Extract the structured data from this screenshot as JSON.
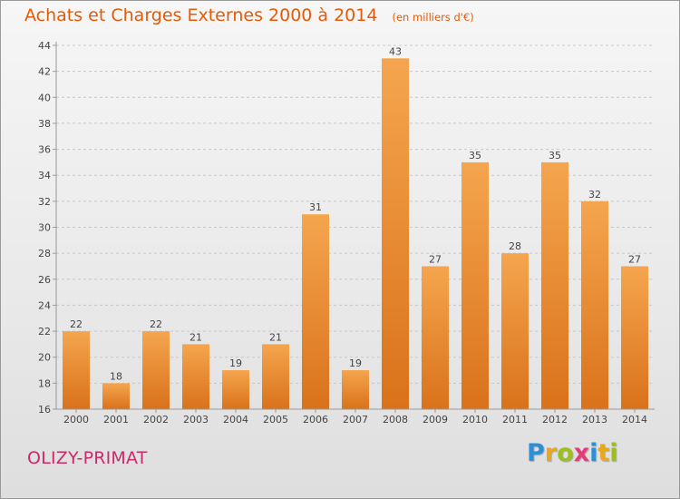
{
  "header": {
    "title": "Achats et Charges Externes 2000 à 2014",
    "unit": "(en milliers d'€)"
  },
  "footer": {
    "town": "OLIZY-PRIMAT",
    "logo": {
      "letters": [
        "P",
        "r",
        "o",
        "x",
        "i",
        "t",
        "i"
      ],
      "colors": [
        "#2d8fd5",
        "#e8a81e",
        "#9bbf1f",
        "#e43c7a",
        "#2d8fd5",
        "#e8a81e",
        "#9bbf1f"
      ]
    }
  },
  "colors": {
    "bar_top": "#f5a54f",
    "bar_bottom": "#d9721a",
    "axis": "#999999",
    "grid": "#c8c8c8",
    "text": "#444444"
  },
  "chart_data": {
    "type": "bar",
    "title": "Achats et Charges Externes 2000 à 2014",
    "subtitle": "(en milliers d'€)",
    "categories": [
      "2000",
      "2001",
      "2002",
      "2003",
      "2004",
      "2005",
      "2006",
      "2007",
      "2008",
      "2009",
      "2010",
      "2011",
      "2012",
      "2013",
      "2014"
    ],
    "values": [
      22,
      18,
      22,
      21,
      19,
      21,
      31,
      19,
      43,
      27,
      35,
      28,
      35,
      32,
      27
    ],
    "ylim": [
      16,
      44
    ],
    "yticks": [
      16,
      18,
      20,
      22,
      24,
      26,
      28,
      30,
      32,
      34,
      36,
      38,
      40,
      42,
      44
    ],
    "grid": "horizontal-dashed",
    "data_labels": true
  }
}
